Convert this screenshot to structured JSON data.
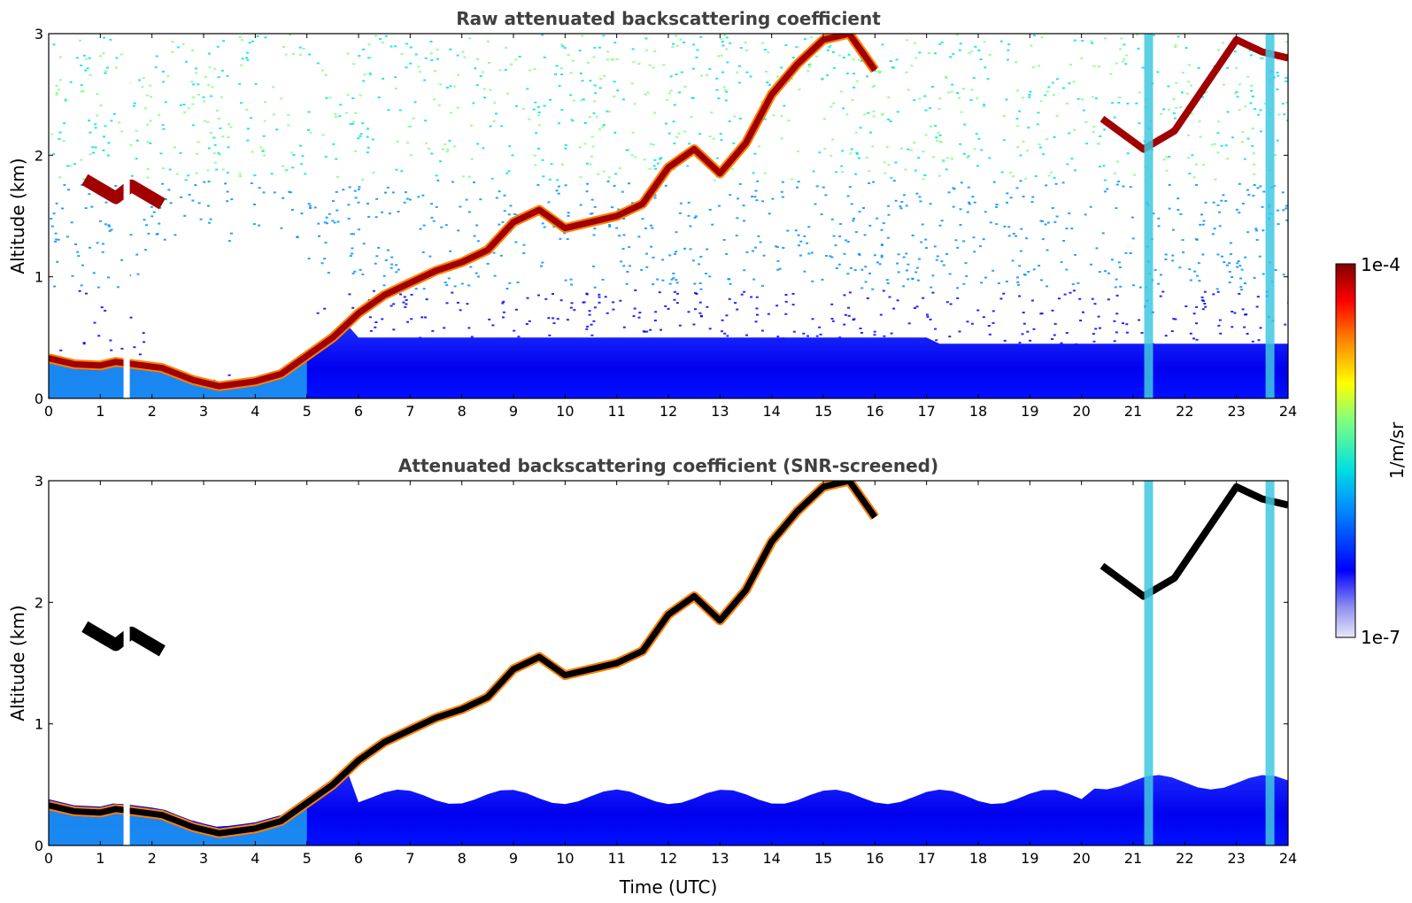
{
  "chart_data": [
    {
      "type": "heatmap",
      "title": "Raw attenuated backscattering coefficient",
      "xlabel": "",
      "ylabel": "Altitude (km)",
      "xlim": [
        0,
        24
      ],
      "ylim": [
        0,
        3
      ],
      "xticks": [
        "0",
        "1",
        "2",
        "3",
        "4",
        "5",
        "6",
        "7",
        "8",
        "9",
        "10",
        "11",
        "12",
        "13",
        "14",
        "15",
        "16",
        "17",
        "18",
        "19",
        "20",
        "21",
        "22",
        "23",
        "24"
      ],
      "yticks": [
        "0",
        "1",
        "2",
        "3"
      ],
      "screened": false
    },
    {
      "type": "heatmap",
      "title": "Attenuated backscattering coefficient (SNR-screened)",
      "xlabel": "Time (UTC)",
      "ylabel": "Altitude (km)",
      "xlim": [
        0,
        24
      ],
      "ylim": [
        0,
        3
      ],
      "xticks": [
        "0",
        "1",
        "2",
        "3",
        "4",
        "5",
        "6",
        "7",
        "8",
        "9",
        "10",
        "11",
        "12",
        "13",
        "14",
        "15",
        "16",
        "17",
        "18",
        "19",
        "20",
        "21",
        "22",
        "23",
        "24"
      ],
      "yticks": [
        "0",
        "1",
        "2",
        "3"
      ],
      "screened": true
    }
  ],
  "colorbar": {
    "label": "1/m/sr",
    "max_label": "1e-4",
    "min_label": "1e-7",
    "scale": "log",
    "colormap": [
      "#e8e8f8",
      "#9090f0",
      "#0000ff",
      "#0090ff",
      "#00e0e0",
      "#80ff80",
      "#ffff00",
      "#ff8000",
      "#ff0000",
      "#800000"
    ]
  },
  "features": {
    "boundary_layer_top_km": [
      [
        0,
        0.33
      ],
      [
        0.5,
        0.28
      ],
      [
        1.0,
        0.27
      ],
      [
        1.3,
        0.3
      ],
      [
        2.2,
        0.25
      ],
      [
        2.8,
        0.15
      ],
      [
        3.3,
        0.1
      ],
      [
        4.0,
        0.14
      ],
      [
        4.5,
        0.2
      ],
      [
        5.0,
        0.35
      ],
      [
        5.5,
        0.5
      ],
      [
        6.0,
        0.7
      ],
      [
        6.5,
        0.85
      ],
      [
        7.0,
        0.95
      ],
      [
        7.5,
        1.05
      ],
      [
        8.0,
        1.12
      ],
      [
        8.5,
        1.22
      ],
      [
        9.0,
        1.45
      ],
      [
        9.5,
        1.55
      ],
      [
        10.0,
        1.4
      ],
      [
        11.0,
        1.5
      ],
      [
        11.5,
        1.6
      ],
      [
        12.0,
        1.9
      ],
      [
        12.5,
        2.05
      ],
      [
        13.0,
        1.85
      ],
      [
        13.5,
        2.1
      ],
      [
        14.0,
        2.5
      ],
      [
        14.5,
        2.75
      ],
      [
        15.0,
        2.95
      ],
      [
        15.5,
        3.0
      ],
      [
        16.0,
        2.7
      ]
    ],
    "residual_layer_km": [
      [
        0.7,
        1.8
      ],
      [
        1.3,
        1.65
      ],
      [
        1.6,
        1.75
      ],
      [
        2.2,
        1.6
      ]
    ],
    "late_cloud_km": [
      [
        20.4,
        2.3
      ],
      [
        21.2,
        2.05
      ],
      [
        21.8,
        2.2
      ],
      [
        23.0,
        2.95
      ],
      [
        23.5,
        2.85
      ],
      [
        24,
        2.8
      ]
    ],
    "precip_columns_h": [
      21.3,
      23.65
    ]
  }
}
